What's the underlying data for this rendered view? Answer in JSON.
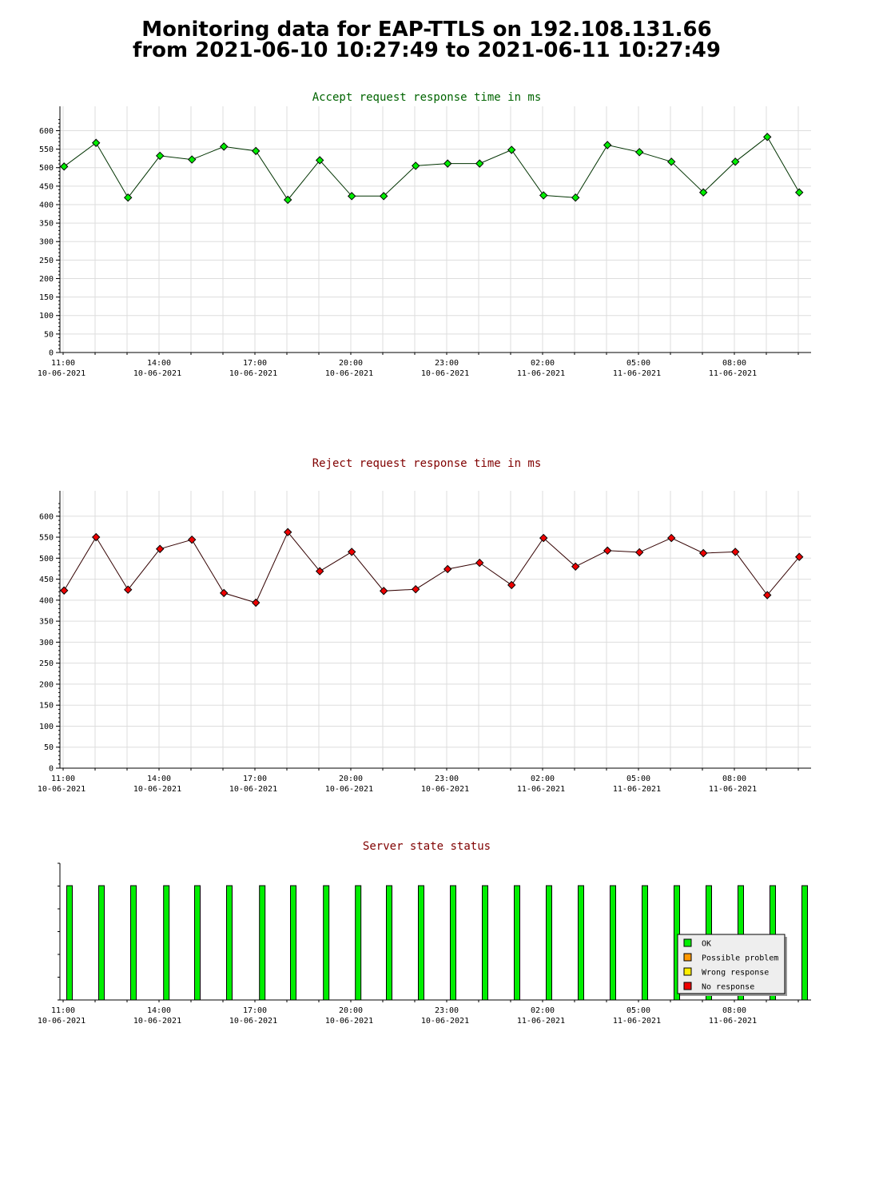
{
  "page": {
    "title_line1": "Monitoring data for EAP-TTLS on 192.108.131.66",
    "title_line2": "from 2021-06-10 10:27:49 to 2021-06-11 10:27:49"
  },
  "colors": {
    "accept_title": "#006400",
    "reject_title": "#800000",
    "status_title": "#800000",
    "accept_point": "#00ee00",
    "accept_line": "#003300",
    "reject_point": "#ee0000",
    "reject_line": "#330000",
    "ok": "#00ee00",
    "possible_problem": "#ff9900",
    "wrong_response": "#ffee00",
    "no_response": "#ee0000",
    "grid": "#dddddd"
  },
  "chart_data": [
    {
      "type": "line",
      "title": "Accept request response time in ms",
      "xlabel": "",
      "ylabel": "",
      "ylim": [
        0,
        630
      ],
      "yticks": [
        0,
        50,
        100,
        150,
        200,
        250,
        300,
        350,
        400,
        450,
        500,
        550,
        600
      ],
      "xlim_hours": [
        10.9,
        34.4
      ],
      "xticks": [
        {
          "time": "11:00",
          "date": "10-06-2021"
        },
        {
          "time": "14:00",
          "date": "10-06-2021"
        },
        {
          "time": "17:00",
          "date": "10-06-2021"
        },
        {
          "time": "20:00",
          "date": "10-06-2021"
        },
        {
          "time": "23:00",
          "date": "10-06-2021"
        },
        {
          "time": "02:00",
          "date": "11-06-2021"
        },
        {
          "time": "05:00",
          "date": "11-06-2021"
        },
        {
          "time": "08:00",
          "date": "11-06-2021"
        }
      ],
      "grid": true,
      "x_hours": [
        11.03,
        12.03,
        13.03,
        14.03,
        15.03,
        16.03,
        17.03,
        18.03,
        19.03,
        20.03,
        21.03,
        22.03,
        23.03,
        24.03,
        25.03,
        26.03,
        27.03,
        28.03,
        29.03,
        30.03,
        31.03,
        32.03,
        33.03,
        34.03
      ],
      "values": [
        503,
        567,
        419,
        532,
        522,
        557,
        545,
        413,
        520,
        423,
        423,
        505,
        511,
        511,
        548,
        425,
        419,
        561,
        542,
        516,
        433,
        516,
        583,
        433
      ]
    },
    {
      "type": "line",
      "title": "Reject request response time in ms",
      "xlabel": "",
      "ylabel": "",
      "ylim": [
        0,
        630
      ],
      "yticks": [
        0,
        50,
        100,
        150,
        200,
        250,
        300,
        350,
        400,
        450,
        500,
        550,
        600
      ],
      "xlim_hours": [
        10.9,
        34.4
      ],
      "xticks": [
        {
          "time": "11:00",
          "date": "10-06-2021"
        },
        {
          "time": "14:00",
          "date": "10-06-2021"
        },
        {
          "time": "17:00",
          "date": "10-06-2021"
        },
        {
          "time": "20:00",
          "date": "10-06-2021"
        },
        {
          "time": "23:00",
          "date": "10-06-2021"
        },
        {
          "time": "02:00",
          "date": "11-06-2021"
        },
        {
          "time": "05:00",
          "date": "11-06-2021"
        },
        {
          "time": "08:00",
          "date": "11-06-2021"
        }
      ],
      "grid": true,
      "x_hours": [
        11.03,
        12.03,
        13.03,
        14.03,
        15.03,
        16.03,
        17.03,
        18.03,
        19.03,
        20.03,
        21.03,
        22.03,
        23.03,
        24.03,
        25.03,
        26.03,
        27.03,
        28.03,
        29.03,
        30.03,
        31.03,
        32.03,
        33.03,
        34.03
      ],
      "values": [
        423,
        550,
        425,
        522,
        544,
        417,
        394,
        562,
        469,
        515,
        422,
        426,
        474,
        489,
        436,
        548,
        480,
        518,
        514,
        548,
        512,
        515,
        412,
        503
      ]
    },
    {
      "type": "bar",
      "title": "Server state status",
      "xlabel": "",
      "ylabel": "",
      "xlim_hours": [
        10.9,
        34.4
      ],
      "xticks": [
        {
          "time": "11:00",
          "date": "10-06-2021"
        },
        {
          "time": "14:00",
          "date": "10-06-2021"
        },
        {
          "time": "17:00",
          "date": "10-06-2021"
        },
        {
          "time": "20:00",
          "date": "10-06-2021"
        },
        {
          "time": "23:00",
          "date": "10-06-2021"
        },
        {
          "time": "02:00",
          "date": "11-06-2021"
        },
        {
          "time": "05:00",
          "date": "11-06-2021"
        },
        {
          "time": "08:00",
          "date": "11-06-2021"
        }
      ],
      "x_hours": [
        11.2,
        12.2,
        13.2,
        14.23,
        15.2,
        16.2,
        17.23,
        18.2,
        19.23,
        20.23,
        21.2,
        22.2,
        23.2,
        24.2,
        25.2,
        26.2,
        27.2,
        28.2,
        29.2,
        30.2,
        31.2,
        32.2,
        33.2,
        34.2
      ],
      "states": [
        "OK",
        "OK",
        "OK",
        "OK",
        "OK",
        "OK",
        "OK",
        "OK",
        "OK",
        "OK",
        "OK",
        "OK",
        "OK",
        "OK",
        "OK",
        "OK",
        "OK",
        "OK",
        "OK",
        "OK",
        "OK",
        "OK",
        "OK",
        "OK"
      ],
      "legend_position": "bottom-right",
      "legend": [
        {
          "label": "OK",
          "color_key": "ok"
        },
        {
          "label": "Possible problem",
          "color_key": "possible_problem"
        },
        {
          "label": "Wrong response",
          "color_key": "wrong_response"
        },
        {
          "label": "No response",
          "color_key": "no_response"
        }
      ]
    }
  ]
}
